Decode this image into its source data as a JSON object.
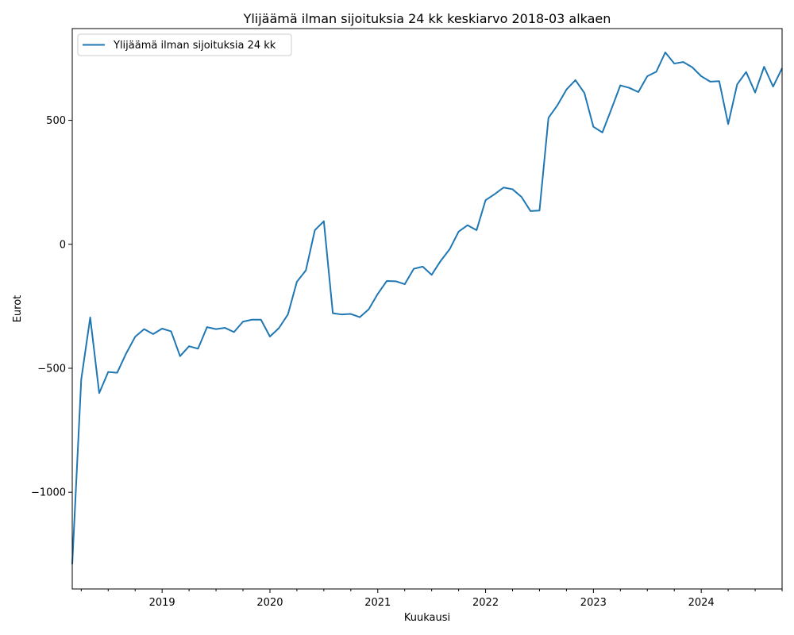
{
  "chart_data": {
    "type": "line",
    "title": "Ylijäämä ilman sijoituksia 24 kk keskiarvo 2018-03 alkaen",
    "xlabel": "Kuukausi",
    "ylabel": "Eurot",
    "x_start": "2018-03",
    "x_end": "2024-10",
    "ylim": [
      -1390,
      870
    ],
    "yticks": [
      -1000,
      -500,
      0,
      500
    ],
    "xticks": [
      "2019",
      "2020",
      "2021",
      "2022",
      "2023",
      "2024"
    ],
    "legend_position": "upper-left",
    "grid": false,
    "line_color": "#1f77b4",
    "series": [
      {
        "name": "Ylijäämä ilman sijoituksia 24 kk",
        "x": [
          "2018-03",
          "2018-04",
          "2018-05",
          "2018-06",
          "2018-07",
          "2018-08",
          "2018-09",
          "2018-10",
          "2018-11",
          "2018-12",
          "2019-01",
          "2019-02",
          "2019-03",
          "2019-04",
          "2019-05",
          "2019-06",
          "2019-07",
          "2019-08",
          "2019-09",
          "2019-10",
          "2019-11",
          "2019-12",
          "2020-01",
          "2020-02",
          "2020-03",
          "2020-04",
          "2020-05",
          "2020-06",
          "2020-07",
          "2020-08",
          "2020-09",
          "2020-10",
          "2020-11",
          "2020-12",
          "2021-01",
          "2021-02",
          "2021-03",
          "2021-04",
          "2021-05",
          "2021-06",
          "2021-07",
          "2021-08",
          "2021-09",
          "2021-10",
          "2021-11",
          "2021-12",
          "2022-01",
          "2022-02",
          "2022-03",
          "2022-04",
          "2022-05",
          "2022-06",
          "2022-07",
          "2022-08",
          "2022-09",
          "2022-10",
          "2022-11",
          "2022-12",
          "2023-01",
          "2023-02",
          "2023-03",
          "2023-04",
          "2023-05",
          "2023-06",
          "2023-07",
          "2023-08",
          "2023-09",
          "2023-10",
          "2023-11",
          "2023-12",
          "2024-01",
          "2024-02",
          "2024-03",
          "2024-04",
          "2024-05",
          "2024-06",
          "2024-07",
          "2024-08",
          "2024-09",
          "2024-10"
        ],
        "values": [
          -1290,
          -545,
          -295,
          -600,
          -515,
          -518,
          -440,
          -373,
          -342,
          -362,
          -340,
          -351,
          -451,
          -411,
          -421,
          -334,
          -342,
          -337,
          -354,
          -312,
          -304,
          -304,
          -372,
          -338,
          -283,
          -151,
          -105,
          57,
          93,
          -278,
          -283,
          -281,
          -294,
          -262,
          -200,
          -148,
          -149,
          -161,
          -99,
          -90,
          -123,
          -67,
          -20,
          51,
          77,
          57,
          178,
          202,
          229,
          222,
          191,
          134,
          136,
          510,
          561,
          624,
          662,
          610,
          474,
          451,
          545,
          641,
          631,
          614,
          678,
          696,
          774,
          729,
          735,
          714,
          678,
          656,
          658,
          485,
          645,
          695,
          612,
          716,
          636,
          710
        ]
      }
    ]
  }
}
